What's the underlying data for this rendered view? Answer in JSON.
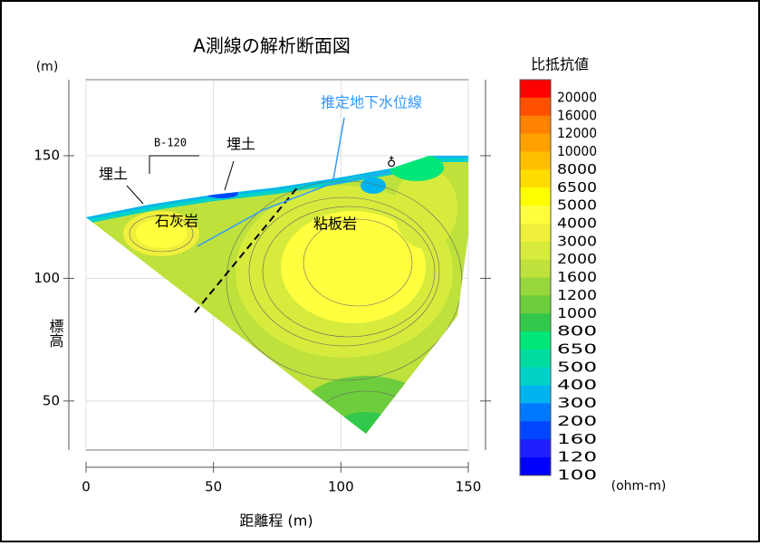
{
  "chart_data": {
    "type": "section",
    "title": "A測線の解析断面図",
    "x_label": "距離程 (m)",
    "y_label": "標高",
    "y_unit": "(m)",
    "xlim": [
      0,
      150
    ],
    "ylim": [
      30,
      181
    ],
    "xticks": [
      0,
      50,
      100,
      150
    ],
    "yticks": [
      50,
      100,
      150
    ],
    "grid": true,
    "annotations": [
      "推定地下水位線",
      "埋土",
      "埋土",
      "B-120",
      "石灰岩",
      "粘板岩"
    ],
    "colorbar": {
      "title": "比抵抗値",
      "unit": "(ohm-m)",
      "levels": [
        20000,
        16000,
        12000,
        10000,
        8000,
        6500,
        5000,
        4000,
        3000,
        2000,
        1600,
        1200,
        1000,
        800,
        650,
        500,
        400,
        300,
        200,
        160,
        120,
        100
      ],
      "colors": [
        "#ff0000",
        "#ff5000",
        "#ff8200",
        "#ffa000",
        "#ffbe00",
        "#ffdc00",
        "#ffff00",
        "#ffff40",
        "#f0f03c",
        "#d7eb3c",
        "#bee13c",
        "#96d73c",
        "#6ecd3c",
        "#32c84b",
        "#00e678",
        "#00dca0",
        "#00d2c8",
        "#00b4f0",
        "#0078ff",
        "#0046ff",
        "#1e1eff",
        "#0000ff"
      ]
    }
  }
}
